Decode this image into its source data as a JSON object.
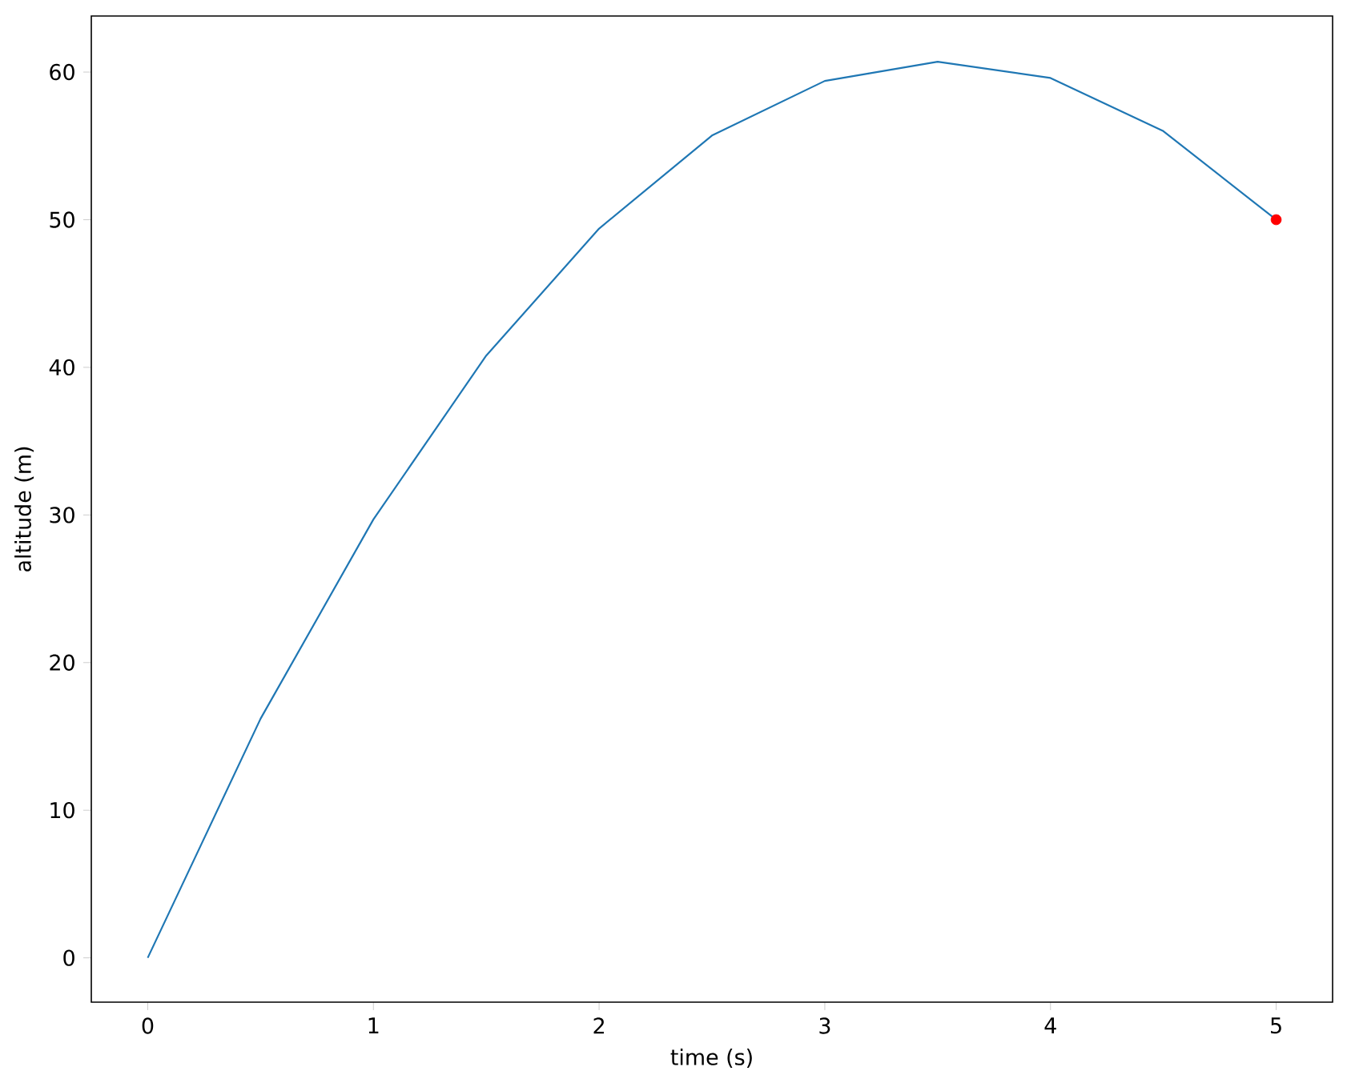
{
  "chart_data": {
    "type": "line",
    "xlabel": "time (s)",
    "ylabel": "altitude (m)",
    "xlim": [
      -0.25,
      5.25
    ],
    "ylim": [
      -3,
      63.8
    ],
    "xticks": [
      0,
      1,
      2,
      3,
      4,
      5
    ],
    "yticks": [
      0,
      10,
      20,
      30,
      40,
      50,
      60
    ],
    "grid": false,
    "series": [
      {
        "color": "#1f77b4",
        "x": [
          0,
          0.5,
          1,
          1.5,
          2,
          2.5,
          3,
          3.5,
          4,
          4.5,
          5
        ],
        "values": [
          0,
          16.2,
          29.7,
          40.8,
          49.4,
          55.7,
          59.4,
          60.7,
          59.6,
          56.0,
          50.0
        ]
      },
      {
        "type": "scatter",
        "color": "#ff0000",
        "marker": "circle",
        "x": [
          5
        ],
        "values": [
          50.0
        ]
      }
    ]
  }
}
